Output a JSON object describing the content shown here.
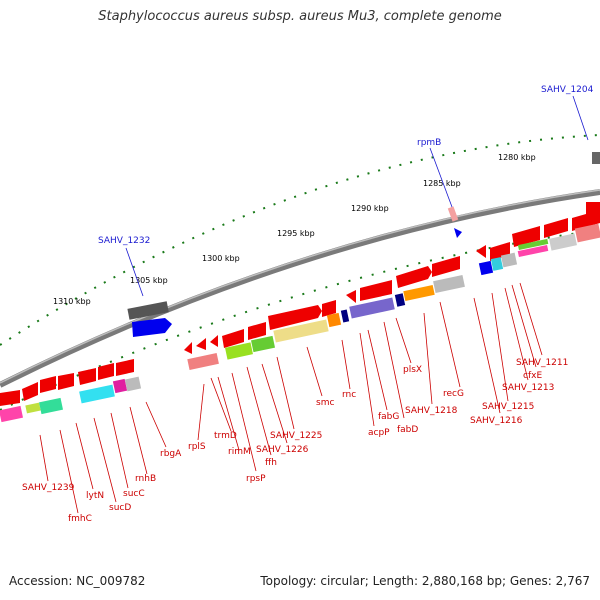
{
  "title": "Staphylococcus aureus subsp. aureus Mu3, complete genome",
  "footer": {
    "accession": "Accession: NC_009782",
    "stats": "Topology: circular; Length: 2,880,168 bp; Genes: 2,767"
  },
  "colors": {
    "backbone": "#7a7a7a",
    "tick": "#1a7a1a",
    "forward_label": "#1a1ad0",
    "reverse_label": "#cc0000",
    "gene_red": "#ee0000",
    "gene_pink": "#f08080",
    "gene_gray": "#8a8a8a",
    "gene_blue": "#0000ee"
  },
  "ticks": [
    "1280 kbp",
    "1285 kbp",
    "1290 kbp",
    "1295 kbp",
    "1300 kbp",
    "1305 kbp",
    "1310 kbp"
  ],
  "forward_labels": [
    "SAHV_1204",
    "rpmB",
    "SAHV_1232"
  ],
  "reverse_labels": [
    "SAHV_1211",
    "cfxE",
    "SAHV_1213",
    "SAHV_1215",
    "SAHV_1216",
    "recG",
    "SAHV_1218",
    "plsX",
    "fabD",
    "fabG",
    "acpP",
    "rnc",
    "smc",
    "SAHV_1225",
    "SAHV_1226",
    "ffh",
    "rpsP",
    "rimM",
    "trmD",
    "rplS",
    "rbgA",
    "rnhB",
    "sucC",
    "sucD",
    "lytN",
    "fmhC",
    "SAHV_1239"
  ]
}
